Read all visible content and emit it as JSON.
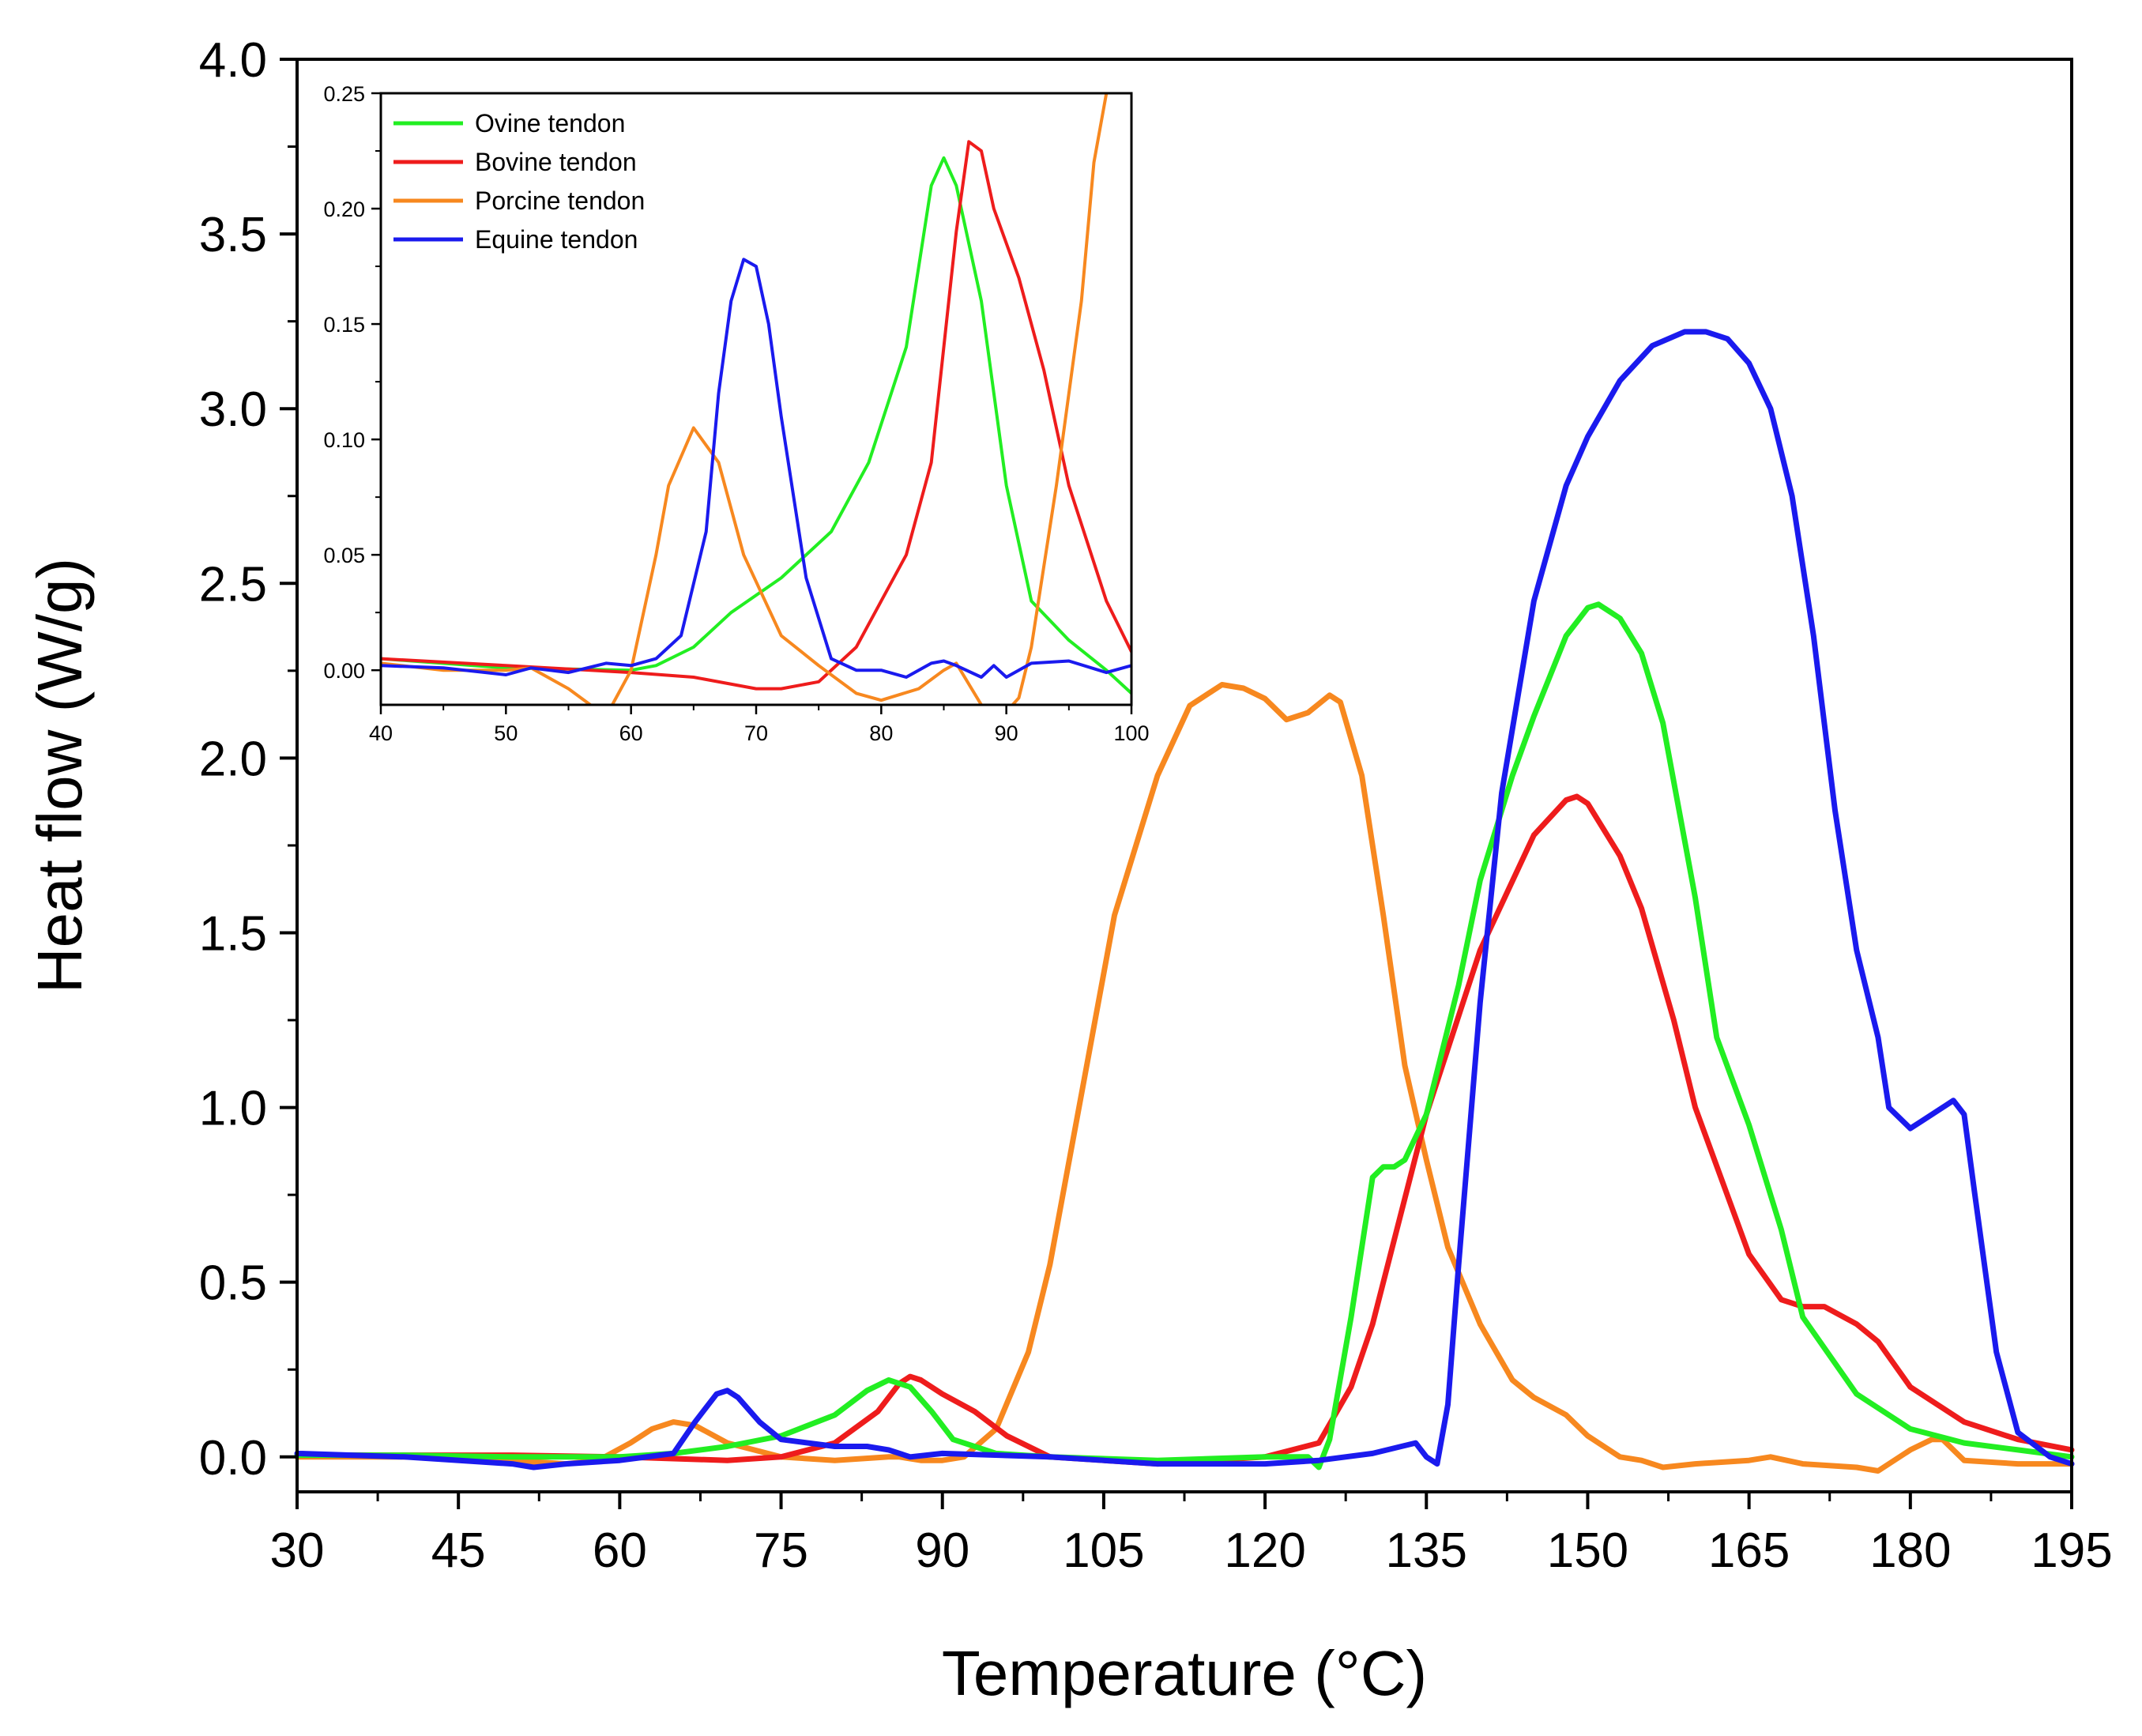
{
  "chart_data": [
    {
      "id": "main",
      "type": "line",
      "title": "",
      "xlabel": "Temperature (°C)",
      "ylabel": "Heat flow (W/g)",
      "xlim": [
        30,
        195
      ],
      "ylim": [
        -0.1,
        4.0
      ],
      "xticks": [
        30,
        45,
        60,
        75,
        90,
        105,
        120,
        135,
        150,
        165,
        180,
        195
      ],
      "xtick_labels": [
        "30",
        "45",
        "60",
        "75",
        "90",
        "105",
        "120",
        "135",
        "150",
        "165",
        "180",
        "195"
      ],
      "yticks": [
        0.0,
        0.5,
        1.0,
        1.5,
        2.0,
        2.5,
        3.0,
        3.5,
        4.0
      ],
      "ytick_labels": [
        "0.0",
        "0.5",
        "1.0",
        "1.5",
        "2.0",
        "2.5",
        "3.0",
        "3.5",
        "4.0"
      ],
      "series": [
        {
          "name": "Ovine tendon",
          "color": "#22ee22",
          "x": [
            30,
            40,
            50,
            60,
            65,
            70,
            75,
            80,
            83,
            85,
            87,
            89,
            91,
            95,
            100,
            110,
            120,
            124,
            125,
            126,
            128,
            130,
            131,
            132,
            133,
            135,
            138,
            140,
            143,
            145,
            148,
            150,
            151,
            153,
            155,
            157,
            160,
            162,
            165,
            168,
            170,
            175,
            180,
            185,
            190,
            195
          ],
          "y": [
            0.005,
            0.005,
            0.0,
            0.0,
            0.01,
            0.03,
            0.06,
            0.12,
            0.19,
            0.22,
            0.2,
            0.13,
            0.05,
            0.01,
            0.0,
            -0.01,
            0.0,
            0.0,
            -0.03,
            0.05,
            0.4,
            0.8,
            0.83,
            0.83,
            0.85,
            0.98,
            1.35,
            1.65,
            1.95,
            2.12,
            2.35,
            2.43,
            2.44,
            2.4,
            2.3,
            2.1,
            1.6,
            1.2,
            0.95,
            0.65,
            0.4,
            0.18,
            0.08,
            0.04,
            0.02,
            0.0
          ]
        },
        {
          "name": "Bovine tendon",
          "color": "#ee1c1c",
          "x": [
            30,
            40,
            50,
            60,
            70,
            75,
            80,
            84,
            86,
            87,
            88,
            90,
            93,
            96,
            100,
            110,
            120,
            125,
            128,
            130,
            135,
            140,
            145,
            148,
            149,
            150,
            153,
            155,
            158,
            160,
            165,
            168,
            170,
            172,
            175,
            177,
            180,
            185,
            190,
            195
          ],
          "y": [
            0.005,
            0.005,
            0.005,
            0.0,
            -0.01,
            0.0,
            0.04,
            0.13,
            0.21,
            0.23,
            0.22,
            0.18,
            0.13,
            0.06,
            0.0,
            -0.02,
            0.0,
            0.04,
            0.2,
            0.38,
            0.98,
            1.45,
            1.78,
            1.88,
            1.89,
            1.87,
            1.72,
            1.57,
            1.25,
            1.0,
            0.58,
            0.45,
            0.43,
            0.43,
            0.38,
            0.33,
            0.2,
            0.1,
            0.05,
            0.02
          ]
        },
        {
          "name": "Porcine tendon",
          "color": "#f7881f",
          "x": [
            30,
            40,
            50,
            55,
            58,
            61,
            63,
            65,
            67,
            70,
            75,
            80,
            85,
            86,
            88,
            90,
            92,
            95,
            98,
            100,
            103,
            106,
            110,
            113,
            116,
            118,
            120,
            122,
            124,
            126,
            127,
            129,
            131,
            133,
            135,
            137,
            140,
            143,
            145,
            148,
            150,
            153,
            155,
            157,
            160,
            165,
            167,
            170,
            175,
            177,
            180,
            182,
            183,
            185,
            190,
            195
          ],
          "y": [
            0.0,
            0.0,
            -0.01,
            -0.02,
            -0.01,
            0.04,
            0.08,
            0.1,
            0.09,
            0.04,
            0.0,
            -0.01,
            0.0,
            0.0,
            -0.01,
            -0.01,
            0.0,
            0.08,
            0.3,
            0.55,
            1.05,
            1.55,
            1.95,
            2.15,
            2.21,
            2.2,
            2.17,
            2.11,
            2.13,
            2.18,
            2.16,
            1.95,
            1.55,
            1.12,
            0.85,
            0.6,
            0.38,
            0.22,
            0.17,
            0.12,
            0.06,
            0.0,
            -0.01,
            -0.03,
            -0.02,
            -0.01,
            0.0,
            -0.02,
            -0.03,
            -0.04,
            0.02,
            0.05,
            0.05,
            -0.01,
            -0.02,
            -0.02
          ]
        },
        {
          "name": "Equine tendon",
          "color": "#1a1aee",
          "x": [
            30,
            40,
            50,
            52,
            55,
            60,
            65,
            67,
            69,
            70,
            71,
            73,
            75,
            80,
            83,
            85,
            87,
            90,
            100,
            110,
            120,
            125,
            130,
            134,
            135,
            136,
            137,
            138,
            140,
            142,
            145,
            148,
            150,
            153,
            156,
            159,
            161,
            163,
            165,
            167,
            169,
            171,
            173,
            175,
            177,
            178,
            180,
            181,
            183,
            184,
            185,
            186,
            188,
            190,
            193,
            195
          ],
          "y": [
            0.01,
            0.0,
            -0.02,
            -0.03,
            -0.02,
            -0.01,
            0.01,
            0.1,
            0.18,
            0.19,
            0.17,
            0.1,
            0.05,
            0.03,
            0.03,
            0.02,
            0.0,
            0.01,
            0.0,
            -0.02,
            -0.02,
            -0.01,
            0.01,
            0.04,
            0.0,
            -0.02,
            0.15,
            0.55,
            1.3,
            1.9,
            2.45,
            2.78,
            2.92,
            3.08,
            3.18,
            3.22,
            3.22,
            3.2,
            3.13,
            3.0,
            2.75,
            2.35,
            1.85,
            1.45,
            1.2,
            1.0,
            0.94,
            0.96,
            1.0,
            1.02,
            0.98,
            0.75,
            0.3,
            0.07,
            0.0,
            -0.02
          ]
        }
      ]
    },
    {
      "id": "inset",
      "type": "line",
      "title": "",
      "xlabel": "",
      "ylabel": "",
      "xlim": [
        40,
        100
      ],
      "ylim": [
        -0.015,
        0.25
      ],
      "xticks": [
        40,
        50,
        60,
        70,
        80,
        90,
        100
      ],
      "xtick_labels": [
        "40",
        "50",
        "60",
        "70",
        "80",
        "90",
        "100"
      ],
      "yticks": [
        0.0,
        0.05,
        0.1,
        0.15,
        0.2,
        0.25
      ],
      "ytick_labels": [
        "0.00",
        "0.05",
        "0.10",
        "0.15",
        "0.20",
        "0.25"
      ],
      "legend_position": "top-left",
      "series": [
        {
          "name": "Ovine tendon",
          "color": "#22ee22",
          "x": [
            40,
            50,
            60,
            62,
            65,
            68,
            72,
            76,
            79,
            82,
            84,
            85,
            86,
            88,
            90,
            92,
            95,
            98,
            100
          ],
          "y": [
            0.005,
            0.001,
            0.0,
            0.002,
            0.01,
            0.025,
            0.04,
            0.06,
            0.09,
            0.14,
            0.21,
            0.222,
            0.21,
            0.16,
            0.08,
            0.03,
            0.013,
            0.0,
            -0.01
          ]
        },
        {
          "name": "Bovine tendon",
          "color": "#ee1c1c",
          "x": [
            40,
            50,
            60,
            65,
            70,
            72,
            75,
            78,
            80,
            82,
            84,
            86,
            87,
            88,
            89,
            91,
            93,
            95,
            98,
            100
          ],
          "y": [
            0.005,
            0.002,
            -0.001,
            -0.003,
            -0.008,
            -0.008,
            -0.005,
            0.01,
            0.03,
            0.05,
            0.09,
            0.19,
            0.229,
            0.225,
            0.2,
            0.17,
            0.13,
            0.08,
            0.03,
            0.008
          ]
        },
        {
          "name": "Porcine tendon",
          "color": "#f7881f",
          "x": [
            40,
            45,
            50,
            52,
            55,
            58,
            60,
            62,
            63,
            65,
            67,
            69,
            72,
            75,
            78,
            80,
            83,
            85,
            86,
            88,
            90,
            91,
            92,
            94,
            96,
            97,
            98
          ],
          "y": [
            0.003,
            0.0,
            0.0,
            0.001,
            -0.008,
            -0.02,
            0.0,
            0.05,
            0.08,
            0.105,
            0.09,
            0.05,
            0.015,
            0.002,
            -0.01,
            -0.013,
            -0.008,
            0.0,
            0.003,
            -0.015,
            -0.018,
            -0.012,
            0.01,
            0.08,
            0.16,
            0.22,
            0.25
          ]
        },
        {
          "name": "Equine tendon",
          "color": "#1a1aee",
          "x": [
            40,
            45,
            50,
            52,
            55,
            58,
            60,
            62,
            64,
            66,
            67,
            68,
            69,
            70,
            71,
            72,
            74,
            76,
            78,
            80,
            82,
            84,
            85,
            86,
            88,
            89,
            90,
            92,
            95,
            98,
            100
          ],
          "y": [
            0.002,
            0.001,
            -0.002,
            0.001,
            -0.001,
            0.003,
            0.002,
            0.005,
            0.015,
            0.06,
            0.12,
            0.16,
            0.178,
            0.175,
            0.15,
            0.11,
            0.04,
            0.005,
            0.0,
            0.0,
            -0.003,
            0.003,
            0.004,
            0.002,
            -0.003,
            0.002,
            -0.003,
            0.003,
            0.004,
            -0.001,
            0.002
          ]
        }
      ]
    }
  ]
}
